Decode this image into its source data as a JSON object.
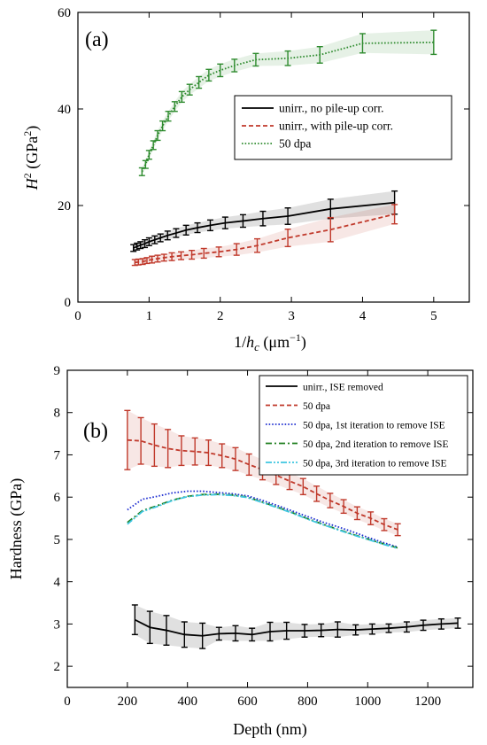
{
  "chart_data": [
    {
      "type": "line",
      "panel_label": "(a)",
      "xlabel": "1/h_c (μm⁻¹)",
      "ylabel": "H² (GPa²)",
      "xlim": [
        0,
        5.5
      ],
      "ylim": [
        0,
        60
      ],
      "x_ticks": [
        0,
        1,
        2,
        3,
        4,
        5
      ],
      "y_ticks": [
        0,
        20,
        40,
        60
      ],
      "legend": "center-right",
      "grid": false,
      "series": [
        {
          "name": "unirr., no pile-up corr.",
          "color": "#000000",
          "dash": "solid",
          "x": [
            0.78,
            0.83,
            0.88,
            0.94,
            1.0,
            1.08,
            1.16,
            1.26,
            1.38,
            1.52,
            1.68,
            1.86,
            2.07,
            2.32,
            2.6,
            2.95,
            3.55,
            4.45
          ],
          "y": [
            11.2,
            11.5,
            11.8,
            12.1,
            12.5,
            12.9,
            13.3,
            13.8,
            14.3,
            14.9,
            15.4,
            15.9,
            16.4,
            16.8,
            17.3,
            17.8,
            19.3,
            20.6
          ],
          "err": [
            0.7,
            0.7,
            0.7,
            0.8,
            0.8,
            0.8,
            0.8,
            0.9,
            0.9,
            1.0,
            1.0,
            1.1,
            1.2,
            1.3,
            1.5,
            1.7,
            2.0,
            2.4
          ]
        },
        {
          "name": "unirr., with pile-up corr.",
          "color": "#c0392b",
          "dash": "dashed",
          "x": [
            0.8,
            0.85,
            0.91,
            0.97,
            1.04,
            1.12,
            1.21,
            1.32,
            1.45,
            1.6,
            1.77,
            1.98,
            2.23,
            2.52,
            2.95,
            3.55,
            4.45
          ],
          "y": [
            8.2,
            8.3,
            8.4,
            8.6,
            8.8,
            9.0,
            9.2,
            9.4,
            9.6,
            9.8,
            10.1,
            10.4,
            10.9,
            11.7,
            13.3,
            15.0,
            18.2
          ],
          "err": [
            0.6,
            0.6,
            0.6,
            0.6,
            0.7,
            0.7,
            0.7,
            0.8,
            0.8,
            0.9,
            1.0,
            1.0,
            1.2,
            1.4,
            1.8,
            2.5,
            2.0
          ]
        },
        {
          "name": "50 dpa",
          "color": "#2e8b2e",
          "dash": "dotted",
          "x": [
            0.9,
            0.95,
            1.0,
            1.06,
            1.12,
            1.19,
            1.27,
            1.36,
            1.46,
            1.57,
            1.7,
            1.84,
            2.0,
            2.2,
            2.5,
            2.95,
            3.4,
            4.0,
            5.0
          ],
          "y": [
            27.0,
            28.5,
            30.5,
            32.5,
            34.5,
            36.5,
            38.5,
            40.5,
            42.5,
            44.0,
            45.5,
            47.0,
            48.0,
            49.0,
            50.2,
            50.5,
            51.2,
            53.6,
            53.8
          ],
          "err": [
            0.8,
            0.8,
            0.9,
            0.9,
            1.0,
            1.0,
            1.0,
            1.0,
            1.1,
            1.1,
            1.2,
            1.2,
            1.3,
            1.3,
            1.3,
            1.5,
            1.7,
            2.0,
            2.5
          ]
        }
      ]
    },
    {
      "type": "line",
      "panel_label": "(b)",
      "xlabel": "Depth (nm)",
      "ylabel": "Hardness (GPa)",
      "xlim": [
        0,
        1350
      ],
      "ylim": [
        1.5,
        9
      ],
      "x_ticks": [
        0,
        200,
        400,
        600,
        800,
        1000,
        1200
      ],
      "y_ticks": [
        2,
        3,
        4,
        5,
        6,
        7,
        8,
        9
      ],
      "legend": "top-right",
      "grid": false,
      "series": [
        {
          "name": "unirr., ISE removed",
          "color": "#000000",
          "dash": "solid",
          "x": [
            225,
            275,
            330,
            390,
            450,
            505,
            560,
            615,
            675,
            730,
            790,
            845,
            900,
            960,
            1015,
            1070,
            1130,
            1185,
            1245,
            1300
          ],
          "y": [
            3.1,
            2.92,
            2.85,
            2.75,
            2.72,
            2.77,
            2.78,
            2.75,
            2.82,
            2.84,
            2.84,
            2.85,
            2.87,
            2.86,
            2.88,
            2.9,
            2.93,
            2.97,
            3.0,
            3.02
          ],
          "err": [
            0.35,
            0.38,
            0.35,
            0.3,
            0.3,
            0.15,
            0.18,
            0.15,
            0.22,
            0.2,
            0.15,
            0.15,
            0.18,
            0.12,
            0.12,
            0.1,
            0.12,
            0.12,
            0.12,
            0.12
          ]
        },
        {
          "name": "50 dpa",
          "color": "#c0392b",
          "dash": "dashed",
          "x": [
            200,
            245,
            290,
            335,
            380,
            425,
            470,
            515,
            560,
            605,
            650,
            695,
            740,
            785,
            830,
            875,
            920,
            965,
            1010,
            1055,
            1100
          ],
          "y": [
            7.35,
            7.33,
            7.23,
            7.15,
            7.1,
            7.08,
            7.05,
            6.98,
            6.9,
            6.77,
            6.65,
            6.52,
            6.38,
            6.25,
            6.08,
            5.92,
            5.78,
            5.62,
            5.5,
            5.35,
            5.23
          ],
          "err": [
            0.7,
            0.55,
            0.5,
            0.45,
            0.35,
            0.32,
            0.3,
            0.28,
            0.27,
            0.25,
            0.24,
            0.22,
            0.2,
            0.19,
            0.18,
            0.17,
            0.16,
            0.15,
            0.15,
            0.14,
            0.14
          ]
        },
        {
          "name": "50 dpa, 1st iteration to remove ISE",
          "color": "#1f2fd1",
          "dash": "dotted",
          "x": [
            200,
            250,
            300,
            350,
            400,
            450,
            500,
            550,
            600,
            650,
            700,
            750,
            800,
            850,
            900,
            950,
            1000,
            1050,
            1100
          ],
          "y": [
            5.7,
            5.95,
            6.02,
            6.1,
            6.14,
            6.14,
            6.11,
            6.08,
            6.03,
            5.92,
            5.8,
            5.67,
            5.54,
            5.41,
            5.3,
            5.18,
            5.05,
            4.93,
            4.82
          ]
        },
        {
          "name": "50 dpa, 2nd iteration to remove ISE",
          "color": "#1f7f1f",
          "dash": "dashdot",
          "x": [
            200,
            250,
            300,
            350,
            400,
            450,
            500,
            550,
            600,
            650,
            700,
            750,
            800,
            850,
            900,
            950,
            1000,
            1050,
            1100
          ],
          "y": [
            5.4,
            5.68,
            5.8,
            5.93,
            6.02,
            6.06,
            6.07,
            6.05,
            6.0,
            5.88,
            5.76,
            5.63,
            5.49,
            5.36,
            5.24,
            5.12,
            5.01,
            4.9,
            4.8
          ]
        },
        {
          "name": "50 dpa, 3rd iteration to remove ISE",
          "color": "#3fc6e0",
          "dash": "dashdotdot",
          "x": [
            200,
            250,
            300,
            350,
            400,
            450,
            500,
            550,
            600,
            650,
            700,
            750,
            800,
            850,
            900,
            950,
            1000,
            1050,
            1100
          ],
          "y": [
            5.36,
            5.66,
            5.78,
            5.92,
            6.01,
            6.05,
            6.06,
            6.04,
            5.99,
            5.87,
            5.75,
            5.62,
            5.48,
            5.35,
            5.23,
            5.11,
            5.0,
            4.89,
            4.79
          ]
        }
      ]
    }
  ]
}
